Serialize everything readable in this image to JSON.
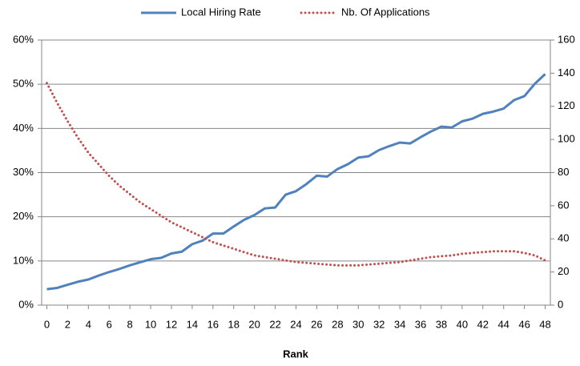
{
  "chart_data": {
    "type": "line",
    "x_label": "Rank",
    "x": [
      0,
      1,
      2,
      3,
      4,
      5,
      6,
      7,
      8,
      9,
      10,
      11,
      12,
      13,
      14,
      15,
      16,
      17,
      18,
      19,
      20,
      21,
      22,
      23,
      24,
      25,
      26,
      27,
      28,
      29,
      30,
      31,
      32,
      33,
      34,
      35,
      36,
      37,
      38,
      39,
      40,
      41,
      42,
      43,
      44,
      45,
      46,
      47,
      48
    ],
    "xlim": [
      -0.5,
      48.5
    ],
    "xticks": [
      0,
      2,
      4,
      6,
      8,
      10,
      12,
      14,
      16,
      18,
      20,
      22,
      24,
      26,
      28,
      30,
      32,
      34,
      36,
      38,
      40,
      42,
      44,
      46,
      48
    ],
    "ylim": [
      0,
      60
    ],
    "yticks": [
      {
        "value": 0,
        "label": "0%"
      },
      {
        "value": 10,
        "label": "10%"
      },
      {
        "value": 20,
        "label": "20%"
      },
      {
        "value": 30,
        "label": "30%"
      },
      {
        "value": 40,
        "label": "40%"
      },
      {
        "value": 50,
        "label": "50%"
      },
      {
        "value": 60,
        "label": "60%"
      }
    ],
    "y2lim": [
      0,
      160
    ],
    "y2ticks": [
      0,
      20,
      40,
      60,
      80,
      100,
      120,
      140,
      160
    ],
    "grid": true,
    "legend": "top",
    "series": [
      {
        "name": "Local Hiring Rate",
        "color": "#4f81bd",
        "style": "solid",
        "values": [
          3.6,
          3.9,
          4.6,
          5.3,
          5.8,
          6.7,
          7.5,
          8.2,
          9.0,
          9.7,
          10.4,
          10.7,
          11.7,
          12.1,
          13.8,
          14.6,
          16.2,
          16.2,
          17.8,
          19.3,
          20.4,
          21.9,
          22.1,
          25.0,
          25.8,
          27.4,
          29.3,
          29.1,
          30.8,
          31.9,
          33.4,
          33.7,
          35.1,
          36.0,
          36.8,
          36.6,
          38.0,
          39.3,
          40.4,
          40.2,
          41.6,
          42.2,
          43.3,
          43.8,
          44.5,
          46.4,
          47.3,
          50.1,
          52.3
        ]
      },
      {
        "name": "Nb. Of Applications",
        "color": "#c0504d",
        "style": "dotted",
        "axis": "y2",
        "values": [
          134,
          122,
          111,
          101,
          92,
          85,
          78,
          72,
          67,
          62,
          58,
          54,
          50,
          47,
          44,
          41,
          38,
          36,
          34,
          32,
          30,
          29,
          28,
          27,
          26,
          25.5,
          25,
          24.5,
          24,
          24,
          24,
          24.5,
          25,
          25.5,
          26,
          27,
          28,
          29,
          29.5,
          30,
          31,
          31.5,
          32,
          32.5,
          32.5,
          32.5,
          31.5,
          30,
          27
        ]
      }
    ]
  }
}
